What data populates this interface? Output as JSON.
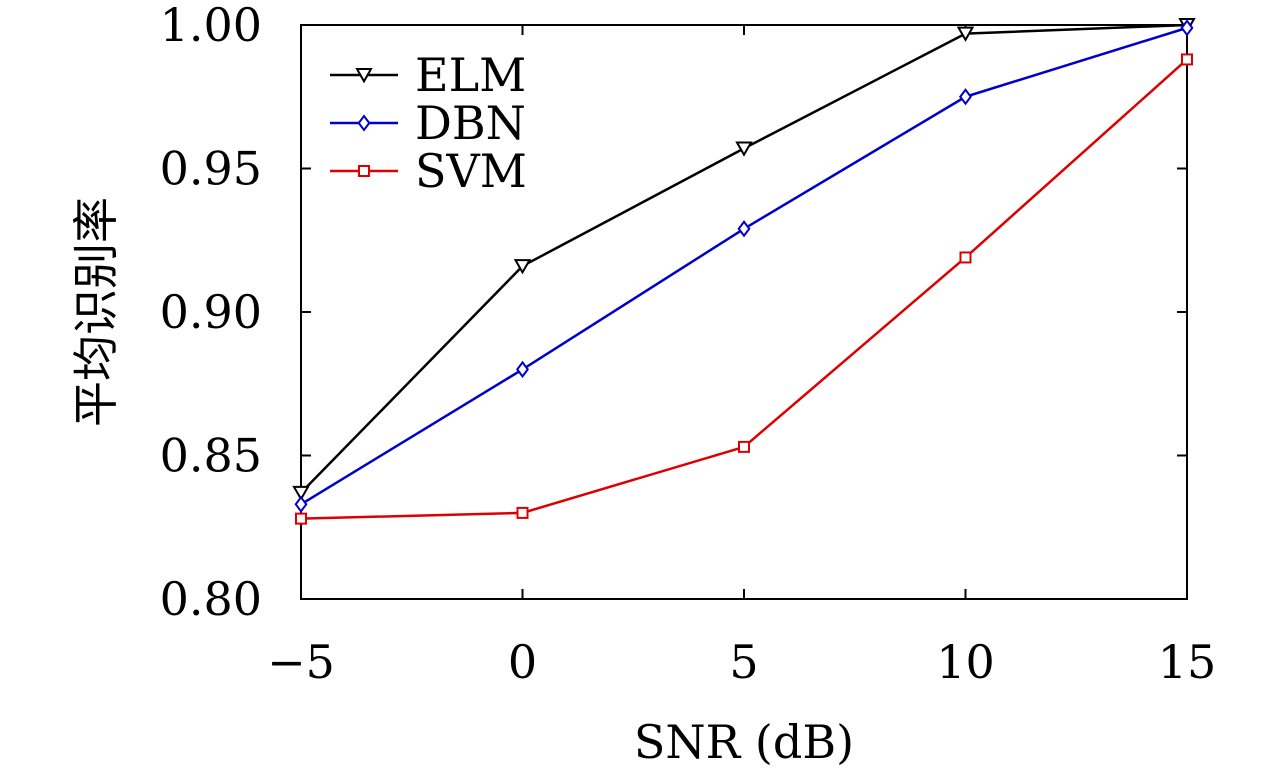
{
  "chart_data": {
    "type": "line",
    "title": "",
    "xlabel": "SNR (dB)",
    "ylabel": "平均识别率",
    "x": [
      -5,
      0,
      5,
      10,
      15
    ],
    "xticks": [
      -5,
      0,
      5,
      10,
      15
    ],
    "xtick_labels": [
      "−5",
      "0",
      "5",
      "10",
      "15"
    ],
    "yticks": [
      0.8,
      0.85,
      0.9,
      0.95,
      1.0
    ],
    "ytick_labels": [
      "0.80",
      "0.85",
      "0.90",
      "0.95",
      "1.00"
    ],
    "xlim": [
      -5,
      15
    ],
    "ylim": [
      0.8,
      1.0
    ],
    "grid": false,
    "legend_position": "top-left",
    "series": [
      {
        "name": "ELM",
        "color": "#000000",
        "marker": "triangle-down",
        "values": [
          0.837,
          0.916,
          0.957,
          0.997,
          1.0
        ]
      },
      {
        "name": "DBN",
        "color": "#0000cc",
        "marker": "diamond",
        "values": [
          0.833,
          0.88,
          0.929,
          0.975,
          0.999
        ]
      },
      {
        "name": "SVM",
        "color": "#dd0000",
        "marker": "square",
        "values": [
          0.828,
          0.83,
          0.853,
          0.919,
          0.988
        ]
      }
    ]
  }
}
